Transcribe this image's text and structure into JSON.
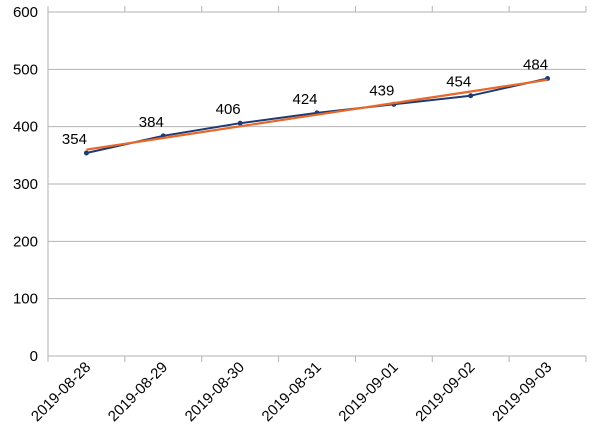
{
  "chart_data": {
    "type": "line",
    "categories": [
      "2019-08-28",
      "2019-08-29",
      "2019-08-30",
      "2019-08-31",
      "2019-09-01",
      "2019-09-02",
      "2019-09-03"
    ],
    "series": [
      {
        "values": [
          354,
          384,
          406,
          424,
          439,
          454,
          484
        ],
        "color": "#1f3b73",
        "markers": true,
        "data_labels": true
      },
      {
        "type": "linear-trendline",
        "values": [
          360,
          380.3,
          400.6,
          420.9,
          441.1,
          461.4,
          481.7
        ],
        "color": "#e8682a"
      }
    ],
    "title": "",
    "xlabel": "",
    "ylabel": "",
    "ylim": [
      0,
      600
    ],
    "yticks": [
      0,
      100,
      200,
      300,
      400,
      500,
      600
    ],
    "grid": "horizontal",
    "legend": "none"
  }
}
